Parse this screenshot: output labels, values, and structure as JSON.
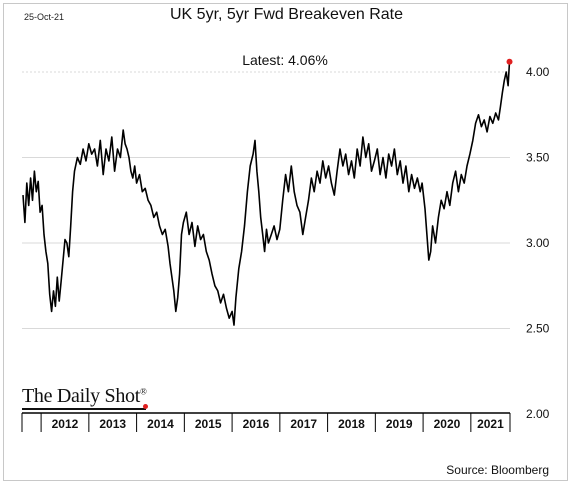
{
  "header": {
    "date": "25-Oct-21",
    "title": "UK 5yr, 5yr Fwd Breakeven Rate",
    "latest": "Latest:  4.06%"
  },
  "footer": {
    "brand": "The Daily Shot",
    "brand_mark": "®",
    "source": "Source: Bloomberg"
  },
  "colors": {
    "line": "#000000",
    "marker": "#e02020",
    "grid": "#d9d9d9"
  },
  "chart_data": {
    "type": "line",
    "title": "UK 5yr, 5yr Fwd Breakeven Rate",
    "xlabel": "",
    "ylabel": "",
    "xlim": [
      2011.6,
      2021.82
    ],
    "ylim": [
      2.0,
      4.0
    ],
    "y_ticks": [
      "2.00",
      "2.50",
      "3.00",
      "3.50",
      "4.00"
    ],
    "x_ticks": [
      "2012",
      "2013",
      "2014",
      "2015",
      "2016",
      "2017",
      "2018",
      "2019",
      "2020",
      "2021"
    ],
    "gridlines": "horizontal",
    "latest_value": 4.06,
    "series": [
      {
        "points": [
          [
            2011.62,
            3.28
          ],
          [
            2011.66,
            3.12
          ],
          [
            2011.7,
            3.35
          ],
          [
            2011.74,
            3.22
          ],
          [
            2011.78,
            3.38
          ],
          [
            2011.82,
            3.25
          ],
          [
            2011.86,
            3.42
          ],
          [
            2011.9,
            3.3
          ],
          [
            2011.94,
            3.36
          ],
          [
            2011.98,
            3.18
          ],
          [
            2012.02,
            3.22
          ],
          [
            2012.06,
            3.05
          ],
          [
            2012.1,
            2.95
          ],
          [
            2012.14,
            2.88
          ],
          [
            2012.18,
            2.7
          ],
          [
            2012.22,
            2.6
          ],
          [
            2012.26,
            2.72
          ],
          [
            2012.3,
            2.63
          ],
          [
            2012.34,
            2.8
          ],
          [
            2012.38,
            2.66
          ],
          [
            2012.42,
            2.78
          ],
          [
            2012.46,
            2.9
          ],
          [
            2012.5,
            3.02
          ],
          [
            2012.54,
            3.0
          ],
          [
            2012.58,
            2.92
          ],
          [
            2012.62,
            3.1
          ],
          [
            2012.66,
            3.3
          ],
          [
            2012.7,
            3.42
          ],
          [
            2012.76,
            3.5
          ],
          [
            2012.82,
            3.46
          ],
          [
            2012.88,
            3.55
          ],
          [
            2012.94,
            3.48
          ],
          [
            2013.0,
            3.58
          ],
          [
            2013.06,
            3.52
          ],
          [
            2013.12,
            3.55
          ],
          [
            2013.18,
            3.45
          ],
          [
            2013.24,
            3.6
          ],
          [
            2013.3,
            3.4
          ],
          [
            2013.36,
            3.55
          ],
          [
            2013.42,
            3.48
          ],
          [
            2013.48,
            3.62
          ],
          [
            2013.54,
            3.42
          ],
          [
            2013.6,
            3.55
          ],
          [
            2013.66,
            3.5
          ],
          [
            2013.72,
            3.66
          ],
          [
            2013.76,
            3.58
          ],
          [
            2013.8,
            3.55
          ],
          [
            2013.84,
            3.5
          ],
          [
            2013.88,
            3.42
          ],
          [
            2013.92,
            3.38
          ],
          [
            2013.96,
            3.45
          ],
          [
            2014.0,
            3.35
          ],
          [
            2014.06,
            3.4
          ],
          [
            2014.12,
            3.3
          ],
          [
            2014.18,
            3.32
          ],
          [
            2014.24,
            3.25
          ],
          [
            2014.3,
            3.22
          ],
          [
            2014.36,
            3.15
          ],
          [
            2014.42,
            3.18
          ],
          [
            2014.48,
            3.1
          ],
          [
            2014.54,
            3.05
          ],
          [
            2014.6,
            3.08
          ],
          [
            2014.66,
            2.98
          ],
          [
            2014.7,
            2.88
          ],
          [
            2014.74,
            2.8
          ],
          [
            2014.78,
            2.72
          ],
          [
            2014.82,
            2.6
          ],
          [
            2014.86,
            2.68
          ],
          [
            2014.9,
            2.82
          ],
          [
            2014.94,
            3.05
          ],
          [
            2014.98,
            3.12
          ],
          [
            2015.04,
            3.18
          ],
          [
            2015.1,
            3.05
          ],
          [
            2015.16,
            3.12
          ],
          [
            2015.22,
            2.98
          ],
          [
            2015.28,
            3.1
          ],
          [
            2015.34,
            3.02
          ],
          [
            2015.4,
            3.05
          ],
          [
            2015.46,
            2.95
          ],
          [
            2015.52,
            2.9
          ],
          [
            2015.58,
            2.82
          ],
          [
            2015.64,
            2.75
          ],
          [
            2015.7,
            2.72
          ],
          [
            2015.76,
            2.65
          ],
          [
            2015.82,
            2.7
          ],
          [
            2015.88,
            2.62
          ],
          [
            2015.94,
            2.56
          ],
          [
            2016.0,
            2.6
          ],
          [
            2016.04,
            2.52
          ],
          [
            2016.08,
            2.68
          ],
          [
            2016.14,
            2.85
          ],
          [
            2016.2,
            2.95
          ],
          [
            2016.26,
            3.1
          ],
          [
            2016.32,
            3.3
          ],
          [
            2016.38,
            3.45
          ],
          [
            2016.44,
            3.52
          ],
          [
            2016.48,
            3.6
          ],
          [
            2016.52,
            3.42
          ],
          [
            2016.56,
            3.3
          ],
          [
            2016.6,
            3.15
          ],
          [
            2016.64,
            3.05
          ],
          [
            2016.68,
            2.95
          ],
          [
            2016.72,
            3.08
          ],
          [
            2016.76,
            3.0
          ],
          [
            2016.82,
            3.05
          ],
          [
            2016.88,
            3.1
          ],
          [
            2016.94,
            3.02
          ],
          [
            2017.0,
            3.08
          ],
          [
            2017.06,
            3.25
          ],
          [
            2017.12,
            3.4
          ],
          [
            2017.18,
            3.3
          ],
          [
            2017.24,
            3.45
          ],
          [
            2017.3,
            3.3
          ],
          [
            2017.36,
            3.22
          ],
          [
            2017.42,
            3.18
          ],
          [
            2017.48,
            3.05
          ],
          [
            2017.54,
            3.15
          ],
          [
            2017.6,
            3.25
          ],
          [
            2017.66,
            3.38
          ],
          [
            2017.72,
            3.3
          ],
          [
            2017.78,
            3.42
          ],
          [
            2017.84,
            3.35
          ],
          [
            2017.9,
            3.48
          ],
          [
            2017.96,
            3.38
          ],
          [
            2018.02,
            3.45
          ],
          [
            2018.08,
            3.35
          ],
          [
            2018.14,
            3.28
          ],
          [
            2018.2,
            3.42
          ],
          [
            2018.26,
            3.55
          ],
          [
            2018.32,
            3.45
          ],
          [
            2018.38,
            3.52
          ],
          [
            2018.44,
            3.4
          ],
          [
            2018.5,
            3.48
          ],
          [
            2018.56,
            3.38
          ],
          [
            2018.62,
            3.55
          ],
          [
            2018.68,
            3.45
          ],
          [
            2018.74,
            3.62
          ],
          [
            2018.8,
            3.5
          ],
          [
            2018.86,
            3.58
          ],
          [
            2018.92,
            3.42
          ],
          [
            2018.98,
            3.48
          ],
          [
            2019.04,
            3.55
          ],
          [
            2019.1,
            3.4
          ],
          [
            2019.16,
            3.5
          ],
          [
            2019.22,
            3.38
          ],
          [
            2019.28,
            3.52
          ],
          [
            2019.34,
            3.45
          ],
          [
            2019.4,
            3.55
          ],
          [
            2019.46,
            3.4
          ],
          [
            2019.52,
            3.48
          ],
          [
            2019.58,
            3.35
          ],
          [
            2019.64,
            3.45
          ],
          [
            2019.7,
            3.3
          ],
          [
            2019.76,
            3.4
          ],
          [
            2019.82,
            3.32
          ],
          [
            2019.88,
            3.38
          ],
          [
            2019.94,
            3.3
          ],
          [
            2019.98,
            3.35
          ],
          [
            2020.04,
            3.2
          ],
          [
            2020.08,
            3.05
          ],
          [
            2020.12,
            2.9
          ],
          [
            2020.16,
            2.95
          ],
          [
            2020.2,
            3.1
          ],
          [
            2020.26,
            3.0
          ],
          [
            2020.32,
            3.15
          ],
          [
            2020.38,
            3.25
          ],
          [
            2020.44,
            3.2
          ],
          [
            2020.5,
            3.3
          ],
          [
            2020.56,
            3.22
          ],
          [
            2020.62,
            3.35
          ],
          [
            2020.68,
            3.42
          ],
          [
            2020.74,
            3.3
          ],
          [
            2020.8,
            3.4
          ],
          [
            2020.86,
            3.35
          ],
          [
            2020.92,
            3.45
          ],
          [
            2020.98,
            3.52
          ],
          [
            2021.04,
            3.6
          ],
          [
            2021.1,
            3.7
          ],
          [
            2021.16,
            3.75
          ],
          [
            2021.22,
            3.68
          ],
          [
            2021.28,
            3.72
          ],
          [
            2021.34,
            3.65
          ],
          [
            2021.4,
            3.74
          ],
          [
            2021.46,
            3.7
          ],
          [
            2021.52,
            3.76
          ],
          [
            2021.58,
            3.72
          ],
          [
            2021.62,
            3.8
          ],
          [
            2021.66,
            3.88
          ],
          [
            2021.7,
            3.95
          ],
          [
            2021.74,
            4.0
          ],
          [
            2021.78,
            3.92
          ],
          [
            2021.81,
            4.06
          ]
        ]
      }
    ]
  }
}
